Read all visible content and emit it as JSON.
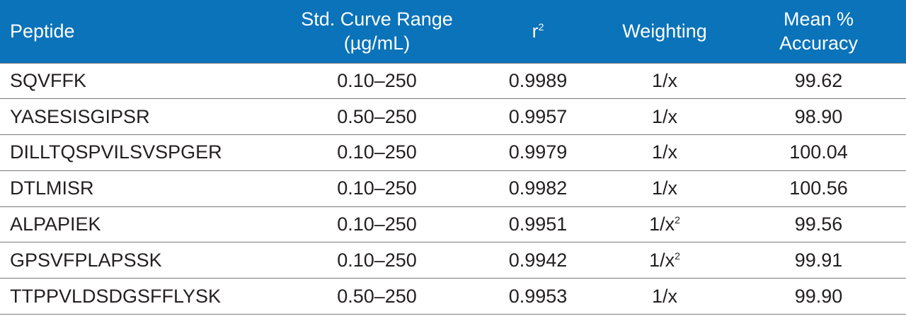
{
  "header": {
    "peptide": "Peptide",
    "range_line1": "Std. Curve Range",
    "range_line2": "(µg/mL)",
    "r_base": "r",
    "r_sup": "2",
    "weighting": "Weighting",
    "accuracy_line1": "Mean %",
    "accuracy_line2": "Accuracy"
  },
  "rows": [
    {
      "peptide": "SQVFFK",
      "range": "0.10–250",
      "r2": "0.9989",
      "weighting": "1/x",
      "weighting_sup": "",
      "accuracy": "99.62"
    },
    {
      "peptide": "YASESISGIPSR",
      "range": "0.50–250",
      "r2": "0.9957",
      "weighting": "1/x",
      "weighting_sup": "",
      "accuracy": "98.90"
    },
    {
      "peptide": "DILLTQSPVILSVSPGER",
      "range": "0.10–250",
      "r2": "0.9979",
      "weighting": "1/x",
      "weighting_sup": "",
      "accuracy": "100.04"
    },
    {
      "peptide": "DTLMISR",
      "range": "0.10–250",
      "r2": "0.9982",
      "weighting": "1/x",
      "weighting_sup": "",
      "accuracy": "100.56"
    },
    {
      "peptide": "ALPAPIEK",
      "range": "0.10–250",
      "r2": "0.9951",
      "weighting": "1/x",
      "weighting_sup": "2",
      "accuracy": "99.56"
    },
    {
      "peptide": "GPSVFPLAPSSK",
      "range": "0.10–250",
      "r2": "0.9942",
      "weighting": "1/x",
      "weighting_sup": "2",
      "accuracy": "99.91"
    },
    {
      "peptide": "TTPPVLDSDGSFFLYSK",
      "range": "0.50–250",
      "r2": "0.9953",
      "weighting": "1/x",
      "weighting_sup": "",
      "accuracy": "99.90"
    }
  ]
}
